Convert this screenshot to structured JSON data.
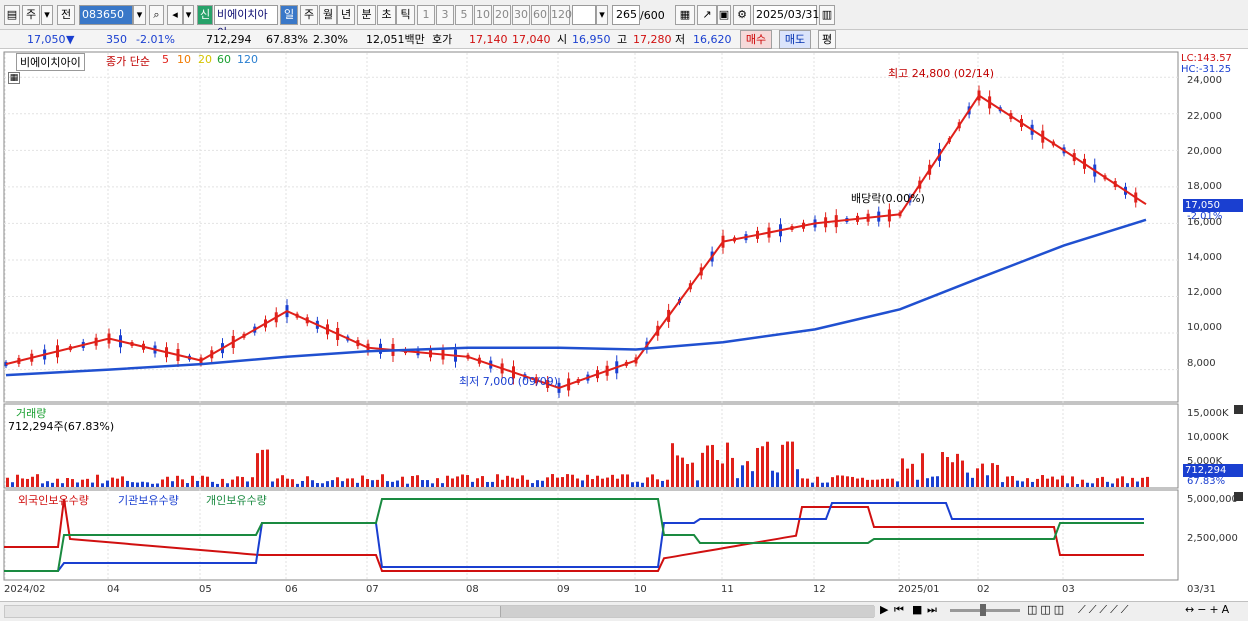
{
  "toolbar": {
    "market_label": "주",
    "type_label": "전",
    "code": "083650",
    "new_badge": "신",
    "stock_name": "비에이치아이",
    "periods": [
      "일",
      "주",
      "월",
      "년",
      "분",
      "초",
      "틱"
    ],
    "active_period": "일",
    "intervals": [
      "1",
      "3",
      "5",
      "10",
      "20",
      "30",
      "60",
      "120"
    ],
    "count": "265",
    "count_total": "/600",
    "date": "2025/03/31"
  },
  "quote": {
    "price": "17,050",
    "arrow": "▼",
    "change": "350",
    "change_pct": "-2.01%",
    "volume": "712,294",
    "volume_ratio": "67.83%",
    "turnover": "2.30%",
    "amount": "12,051백만",
    "ask_label": "호가",
    "ask_price": "17,140",
    "bid_price": "17,040",
    "open_label": "시",
    "open": "16,950",
    "high_label": "고",
    "high": "17,280",
    "low_label": "저",
    "low": "16,620",
    "buy_label": "매수",
    "sell_label": "매도",
    "eval_label": "평"
  },
  "price_panel": {
    "legend_name": "비에이치아이",
    "legend_ma_title": "종가 단순",
    "ma_labels": [
      "5",
      "10",
      "20",
      "60",
      "120"
    ],
    "ma_colors": [
      "#e0201a",
      "#f07a00",
      "#f4e000",
      "#1aa030",
      "#2050d0"
    ],
    "lc": "LC:143.57",
    "hc": "HC:-31.25",
    "high_note": "최고 24,800 (02/14)",
    "low_note": "최저 7,000 (09/09)",
    "dividend_note": "배당락(0.00%)",
    "current_price_tag": "17,050",
    "current_pct_tag": "-2.01%",
    "y_ticks": [
      "24,000",
      "22,000",
      "20,000",
      "18,000",
      "16,000",
      "14,000",
      "12,000",
      "10,000",
      "8,000"
    ]
  },
  "volume_panel": {
    "title": "거래량",
    "value_line": "712,294주(67.83%)",
    "y_ticks": [
      "15,000K",
      "10,000K",
      "5,000K"
    ],
    "tag_value": "712,294",
    "tag_pct": "67.83%"
  },
  "holding_panel": {
    "series": [
      "외국인보유수량",
      "기관보유수량",
      "개인보유수량"
    ],
    "y_ticks": [
      "5,000,000",
      "2,500,000"
    ]
  },
  "x_axis": [
    "2024/02",
    "04",
    "05",
    "06",
    "07",
    "08",
    "09",
    "10",
    "11",
    "12",
    "2025/01",
    "02",
    "03",
    "03/31"
  ],
  "chart_data": {
    "type": "line",
    "title": "",
    "ylim": [
      6500,
      25000
    ],
    "series": [
      {
        "name": "종가",
        "x": [
          "2024/02",
          "04",
          "05",
          "06",
          "07",
          "08",
          "09",
          "10",
          "11",
          "12",
          "2025/01",
          "02",
          "03",
          "03/31"
        ],
        "values": [
          8300,
          9700,
          8500,
          11200,
          9200,
          8700,
          7000,
          8500,
          15000,
          16000,
          16500,
          23000,
          20000,
          17050
        ]
      },
      {
        "name": "120",
        "x": [
          "2024/02",
          "04",
          "05",
          "06",
          "07",
          "08",
          "09",
          "10",
          "11",
          "12",
          "2025/01",
          "02",
          "03",
          "03/31"
        ],
        "values": [
          7700,
          8000,
          8300,
          8700,
          9000,
          9200,
          9200,
          9100,
          9500,
          10200,
          11300,
          13000,
          14800,
          16200
        ]
      }
    ]
  }
}
